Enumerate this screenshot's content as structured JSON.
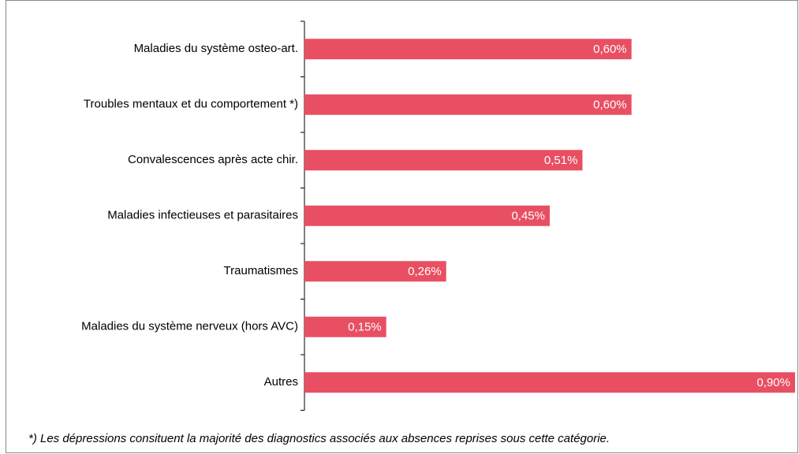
{
  "chart_data": {
    "type": "bar",
    "orientation": "horizontal",
    "categories": [
      "Maladies du système osteo-art.",
      "Troubles mentaux et du comportement *)",
      "Convalescences après acte chir.",
      "Maladies infectieuses et parasitaires",
      "Traumatismes",
      "Maladies du système nerveux (hors AVC)",
      "Autres"
    ],
    "values": [
      0.6,
      0.6,
      0.51,
      0.45,
      0.26,
      0.15,
      0.9
    ],
    "value_labels": [
      "0,60%",
      "0,60%",
      "0,51%",
      "0,45%",
      "0,26%",
      "0,15%",
      "0,90%"
    ],
    "color": "#e84f62",
    "annotation": "*) Les dépressions consituent la majorité des diagnostics associés aux absences reprises sous cette catégorie."
  }
}
